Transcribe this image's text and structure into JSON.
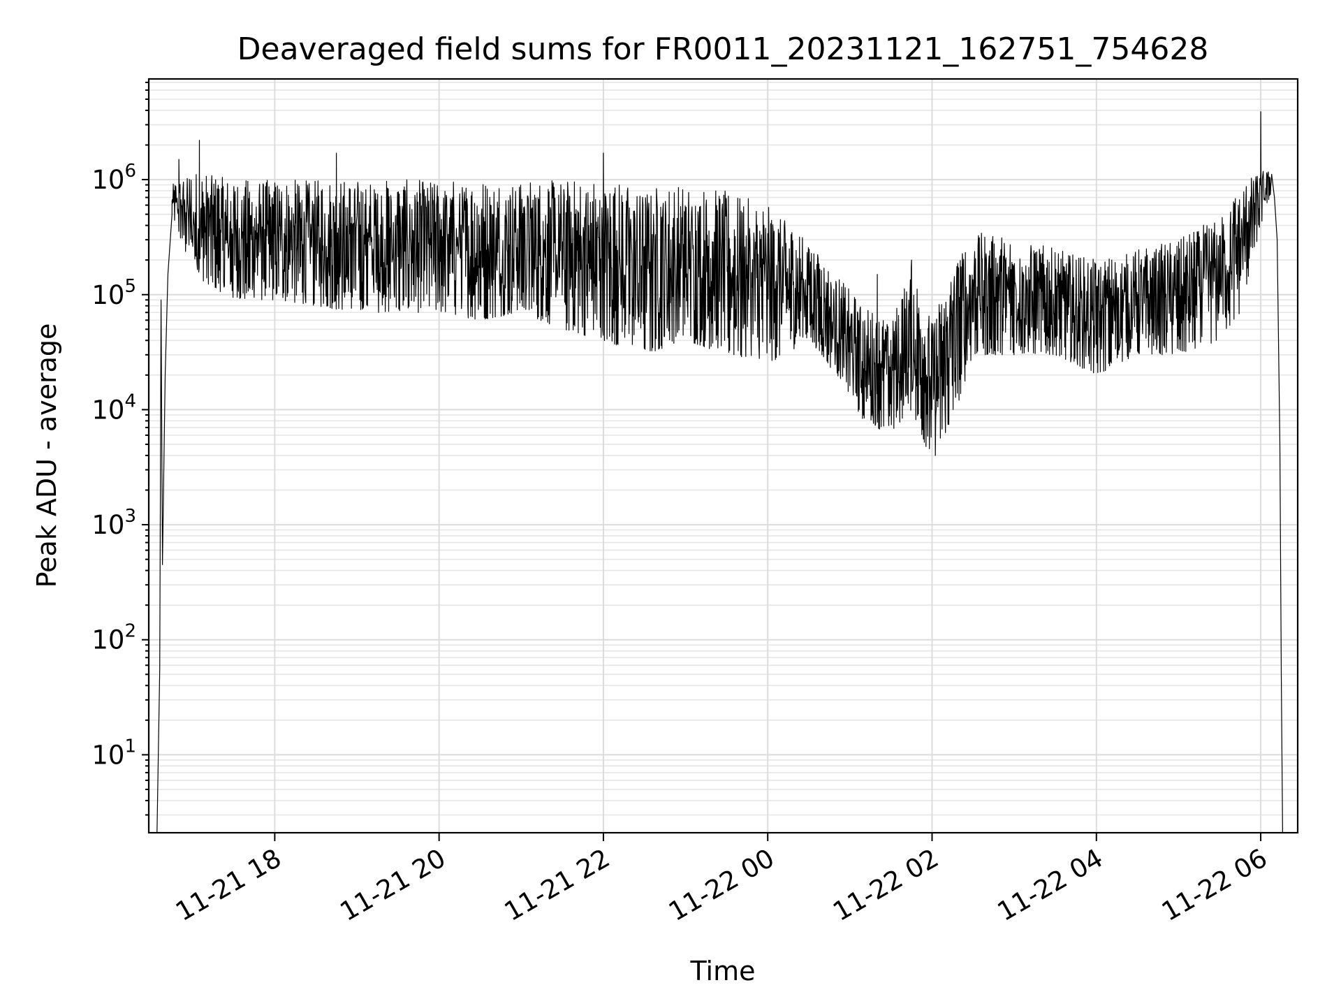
{
  "chart_data": {
    "type": "line",
    "title": "Deaveraged field sums for FR0011_20231121_162751_754628",
    "xlabel": "Time",
    "ylabel": "Peak ADU - average",
    "yscale": "log",
    "ylim": [
      2.1,
      7500000
    ],
    "xlim": [
      "2023-11-21 16:28",
      "2023-11-22 06:27"
    ],
    "x_ticks": [
      "11-21 18",
      "11-21 20",
      "11-21 22",
      "11-22 00",
      "11-22 02",
      "11-22 04",
      "11-22 06"
    ],
    "y_ticks": [
      {
        "base": "10",
        "exp": "1",
        "value": 10
      },
      {
        "base": "10",
        "exp": "2",
        "value": 100
      },
      {
        "base": "10",
        "exp": "3",
        "value": 1000
      },
      {
        "base": "10",
        "exp": "4",
        "value": 10000
      },
      {
        "base": "10",
        "exp": "5",
        "value": 100000
      },
      {
        "base": "10",
        "exp": "6",
        "value": 1000000
      }
    ],
    "grid": true,
    "line_color": "#000000",
    "series": [
      {
        "envelope": {
          "x": [
            "2023-11-21 16:45",
            "2023-11-21 17:00",
            "2023-11-21 17:30",
            "2023-11-21 18:00",
            "2023-11-21 18:30",
            "2023-11-21 19:00",
            "2023-11-21 19:30",
            "2023-11-21 20:00",
            "2023-11-21 20:30",
            "2023-11-21 21:00",
            "2023-11-21 21:30",
            "2023-11-21 22:00",
            "2023-11-21 22:30",
            "2023-11-21 23:00",
            "2023-11-21 23:30",
            "2023-11-22 00:00",
            "2023-11-22 00:30",
            "2023-11-22 00:50",
            "2023-11-22 01:10",
            "2023-11-22 01:30",
            "2023-11-22 01:45",
            "2023-11-22 02:00",
            "2023-11-22 02:15",
            "2023-11-22 02:30",
            "2023-11-22 03:00",
            "2023-11-22 03:30",
            "2023-11-22 04:00",
            "2023-11-22 04:30",
            "2023-11-22 05:00",
            "2023-11-22 05:30",
            "2023-11-22 05:45",
            "2023-11-22 06:00",
            "2023-11-22 06:08"
          ],
          "lo": [
            500000,
            150000,
            90000,
            90000,
            80000,
            70000,
            70000,
            70000,
            60000,
            70000,
            50000,
            40000,
            30000,
            40000,
            30000,
            25000,
            40000,
            20000,
            8000,
            6000,
            10000,
            3500,
            8000,
            30000,
            30000,
            30000,
            20000,
            30000,
            30000,
            40000,
            70000,
            400000,
            800000
          ],
          "hi": [
            900000,
            1200000,
            1000000,
            1000000,
            1000000,
            1000000,
            1000000,
            1000000,
            1000000,
            1000000,
            1000000,
            1000000,
            900000,
            900000,
            800000,
            600000,
            300000,
            150000,
            80000,
            60000,
            180000,
            60000,
            200000,
            350000,
            320000,
            250000,
            200000,
            250000,
            300000,
            500000,
            900000,
            1200000,
            1200000
          ]
        },
        "spikes": [
          {
            "x": "2023-11-21 16:50",
            "y": 1500000
          },
          {
            "x": "2023-11-21 17:05",
            "y": 2200000
          },
          {
            "x": "2023-11-21 18:45",
            "y": 1700000
          },
          {
            "x": "2023-11-21 22:00",
            "y": 1700000
          },
          {
            "x": "2023-11-22 01:20",
            "y": 150000
          },
          {
            "x": "2023-11-22 01:45",
            "y": 200000
          },
          {
            "x": "2023-11-22 06:00",
            "y": 3900000
          }
        ],
        "edges": {
          "start": {
            "x": [
              "2023-11-21 16:34",
              "2023-11-21 16:36",
              "2023-11-21 16:37",
              "2023-11-21 16:38",
              "2023-11-21 16:40",
              "2023-11-21 16:42",
              "2023-11-21 16:45"
            ],
            "y": [
              2.1,
              55,
              90000,
              450,
              20000,
              150000,
              500000
            ]
          },
          "end": {
            "x": [
              "2023-11-22 06:10",
              "2023-11-22 06:12",
              "2023-11-22 06:14",
              "2023-11-22 06:15",
              "2023-11-22 06:16"
            ],
            "y": [
              700000,
              300000,
              5000,
              50,
              2.1
            ]
          }
        }
      }
    ]
  }
}
